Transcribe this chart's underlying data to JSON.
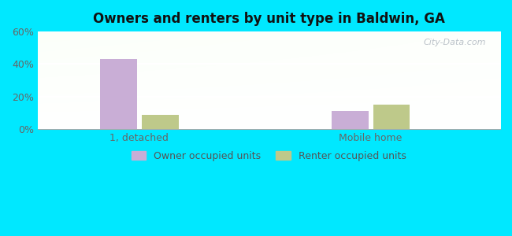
{
  "title": "Owners and renters by unit type in Baldwin, GA",
  "categories": [
    "1, detached",
    "Mobile home"
  ],
  "owner_values": [
    43,
    11
  ],
  "renter_values": [
    9,
    15
  ],
  "owner_color": "#c9aed6",
  "renter_color": "#bec98a",
  "ylim": [
    0,
    60
  ],
  "yticks": [
    0,
    20,
    40,
    60
  ],
  "ytick_labels": [
    "0%",
    "20%",
    "40%",
    "60%"
  ],
  "bar_width": 0.08,
  "group_positions": [
    0.22,
    0.72
  ],
  "xlim": [
    0.0,
    1.0
  ],
  "background_outer": "#00e8ff",
  "legend_labels": [
    "Owner occupied units",
    "Renter occupied units"
  ],
  "watermark": "City-Data.com"
}
